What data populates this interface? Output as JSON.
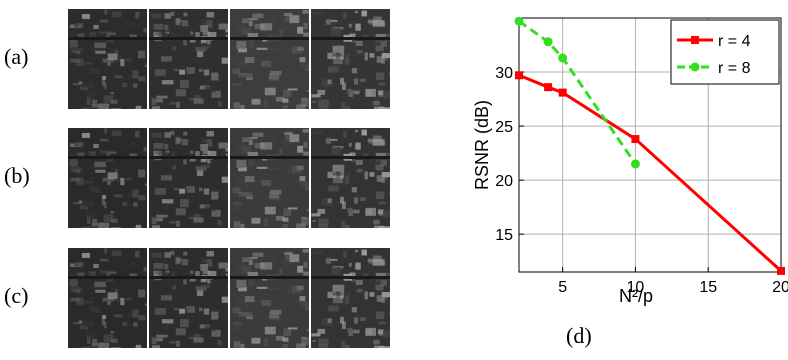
{
  "panels": {
    "rows": [
      {
        "label": "(a)",
        "tiles": [
          {
            "tone": "#2c2c2c"
          },
          {
            "tone": "#2f2f2f"
          },
          {
            "tone": "#3d3d3d"
          },
          {
            "tone": "#353535"
          }
        ]
      },
      {
        "label": "(b)",
        "tiles": [
          {
            "tone": "#2a2a2a"
          },
          {
            "tone": "#2d2d2d"
          },
          {
            "tone": "#3b3b3b"
          },
          {
            "tone": "#333333"
          }
        ]
      },
      {
        "label": "(c)",
        "tiles": [
          {
            "tone": "#2a2a2a"
          },
          {
            "tone": "#2d2d2d"
          },
          {
            "tone": "#3b3b3b"
          },
          {
            "tone": "#333333"
          }
        ]
      }
    ]
  },
  "chart_data": {
    "type": "line",
    "title": "",
    "xlabel": "N²/p",
    "ylabel": "RSNR (dB)",
    "xlim": [
      2,
      20
    ],
    "ylim": [
      11.5,
      35
    ],
    "xticks": [
      5,
      10,
      15,
      20
    ],
    "yticks": [
      15,
      20,
      25,
      30
    ],
    "grid": true,
    "legend_position": "top-right",
    "subplot_label": "(d)",
    "series": [
      {
        "name": "r = 4",
        "color": "#ff0000",
        "marker": "square",
        "dash": "solid",
        "x": [
          2,
          4,
          5,
          10,
          20
        ],
        "y": [
          29.7,
          28.6,
          28.1,
          23.8,
          11.6
        ]
      },
      {
        "name": "r = 8",
        "color": "#33dd22",
        "marker": "circle",
        "dash": "dashed",
        "x": [
          2,
          4,
          5,
          10
        ],
        "y": [
          34.7,
          32.8,
          31.3,
          21.5
        ]
      }
    ]
  }
}
